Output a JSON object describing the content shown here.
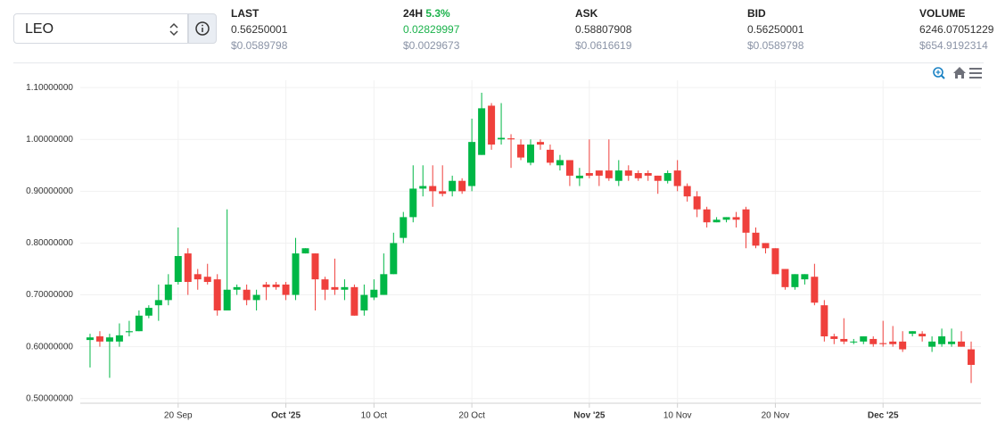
{
  "header": {
    "symbol": "LEO",
    "stats": [
      {
        "label": "LAST",
        "value": "0.56250001",
        "usd": "$0.0589798"
      },
      {
        "label": "24H",
        "change": "5.3%",
        "value": "0.02829997",
        "usd": "$0.0029673"
      },
      {
        "label": "ASK",
        "value": "0.58807908",
        "usd": "$0.0616619"
      },
      {
        "label": "BID",
        "value": "0.56250001",
        "usd": "$0.0589798"
      },
      {
        "label": "VOLUME",
        "value": "6246.07051229",
        "usd": "$654.9192314"
      }
    ]
  },
  "chart_data": {
    "type": "candlestick",
    "up_color": "#00b746",
    "down_color": "#ef403c",
    "grid": true,
    "xlim": [
      "2025-09-10",
      "2025-12-11"
    ],
    "xticks": [
      {
        "value": "2025-09-20",
        "label": "20 Sep"
      },
      {
        "value": "2025-10-01",
        "label": "Oct '25"
      },
      {
        "value": "2025-10-10",
        "label": "10 Oct"
      },
      {
        "value": "2025-10-20",
        "label": "20 Oct"
      },
      {
        "value": "2025-11-01",
        "label": "Nov '25"
      },
      {
        "value": "2025-11-10",
        "label": "10 Nov"
      },
      {
        "value": "2025-11-20",
        "label": "20 Nov"
      },
      {
        "value": "2025-12-01",
        "label": "Dec '25"
      }
    ],
    "ylim": [
      0.491,
      1.114
    ],
    "yticks": [
      {
        "value": 0.5,
        "label": "0.50000000"
      },
      {
        "value": 0.6,
        "label": "0.60000000"
      },
      {
        "value": 0.7,
        "label": "0.70000000"
      },
      {
        "value": 0.8,
        "label": "0.80000000"
      },
      {
        "value": 0.9,
        "label": "0.90000000"
      },
      {
        "value": 1.0,
        "label": "1.00000000"
      },
      {
        "value": 1.1,
        "label": "1.10000000"
      }
    ],
    "x": [
      "2025-09-11",
      "2025-09-12",
      "2025-09-13",
      "2025-09-14",
      "2025-09-15",
      "2025-09-16",
      "2025-09-17",
      "2025-09-18",
      "2025-09-19",
      "2025-09-20",
      "2025-09-21",
      "2025-09-22",
      "2025-09-23",
      "2025-09-24",
      "2025-09-25",
      "2025-09-26",
      "2025-09-27",
      "2025-09-28",
      "2025-09-29",
      "2025-09-30",
      "2025-10-01",
      "2025-10-02",
      "2025-10-03",
      "2025-10-04",
      "2025-10-05",
      "2025-10-06",
      "2025-10-07",
      "2025-10-08",
      "2025-10-09",
      "2025-10-10",
      "2025-10-11",
      "2025-10-12",
      "2025-10-13",
      "2025-10-14",
      "2025-10-15",
      "2025-10-16",
      "2025-10-17",
      "2025-10-18",
      "2025-10-19",
      "2025-10-20",
      "2025-10-21",
      "2025-10-22",
      "2025-10-23",
      "2025-10-24",
      "2025-10-25",
      "2025-10-26",
      "2025-10-27",
      "2025-10-28",
      "2025-10-29",
      "2025-10-30",
      "2025-10-31",
      "2025-11-01",
      "2025-11-02",
      "2025-11-03",
      "2025-11-04",
      "2025-11-05",
      "2025-11-06",
      "2025-11-07",
      "2025-11-08",
      "2025-11-09",
      "2025-11-10",
      "2025-11-11",
      "2025-11-12",
      "2025-11-13",
      "2025-11-14",
      "2025-11-15",
      "2025-11-16",
      "2025-11-17",
      "2025-11-18",
      "2025-11-19",
      "2025-11-20",
      "2025-11-21",
      "2025-11-22",
      "2025-11-23",
      "2025-11-24",
      "2025-11-25",
      "2025-11-26",
      "2025-11-27",
      "2025-11-28",
      "2025-11-29",
      "2025-11-30",
      "2025-12-01",
      "2025-12-02",
      "2025-12-03",
      "2025-12-04",
      "2025-12-05",
      "2025-12-06",
      "2025-12-07",
      "2025-12-08",
      "2025-12-09",
      "2025-12-10"
    ],
    "open": [
      0.613,
      0.62,
      0.61,
      0.61,
      0.628,
      0.63,
      0.66,
      0.68,
      0.69,
      0.725,
      0.78,
      0.74,
      0.735,
      0.73,
      0.67,
      0.71,
      0.71,
      0.69,
      0.72,
      0.72,
      0.72,
      0.7,
      0.78,
      0.78,
      0.73,
      0.715,
      0.71,
      0.715,
      0.67,
      0.695,
      0.7,
      0.74,
      0.81,
      0.85,
      0.905,
      0.91,
      0.9,
      0.9,
      0.92,
      0.91,
      0.97,
      1.065,
      1.0,
      1.002,
      0.99,
      0.955,
      0.995,
      0.98,
      0.95,
      0.96,
      0.925,
      0.935,
      0.94,
      0.94,
      0.92,
      0.94,
      0.935,
      0.935,
      0.93,
      0.92,
      0.94,
      0.91,
      0.89,
      0.865,
      0.84,
      0.845,
      0.85,
      0.865,
      0.82,
      0.8,
      0.79,
      0.75,
      0.715,
      0.73,
      0.735,
      0.68,
      0.62,
      0.615,
      0.61,
      0.61,
      0.615,
      0.607,
      0.61,
      0.61,
      0.625,
      0.625,
      0.6,
      0.605,
      0.605,
      0.61,
      0.595
    ],
    "high": [
      0.625,
      0.63,
      0.625,
      0.645,
      0.65,
      0.67,
      0.68,
      0.72,
      0.74,
      0.83,
      0.79,
      0.75,
      0.76,
      0.74,
      0.865,
      0.72,
      0.72,
      0.71,
      0.725,
      0.725,
      0.725,
      0.81,
      0.79,
      0.78,
      0.735,
      0.77,
      0.73,
      0.72,
      0.72,
      0.73,
      0.78,
      0.82,
      0.86,
      0.95,
      0.95,
      0.95,
      0.95,
      0.93,
      0.925,
      1.04,
      1.09,
      1.07,
      1.07,
      1.01,
      1.0,
      1.0,
      1.0,
      0.99,
      0.97,
      0.96,
      0.945,
      1.0,
      0.94,
      1.0,
      0.96,
      0.95,
      0.94,
      0.94,
      0.93,
      0.94,
      0.96,
      0.915,
      0.9,
      0.87,
      0.85,
      0.85,
      0.86,
      0.87,
      0.83,
      0.8,
      0.79,
      0.75,
      0.74,
      0.74,
      0.76,
      0.69,
      0.625,
      0.655,
      0.615,
      0.62,
      0.62,
      0.65,
      0.64,
      0.63,
      0.63,
      0.63,
      0.62,
      0.635,
      0.635,
      0.63,
      0.61
    ],
    "low": [
      0.56,
      0.6,
      0.54,
      0.6,
      0.62,
      0.63,
      0.655,
      0.65,
      0.68,
      0.72,
      0.7,
      0.71,
      0.72,
      0.66,
      0.67,
      0.7,
      0.68,
      0.67,
      0.69,
      0.71,
      0.69,
      0.69,
      0.78,
      0.67,
      0.69,
      0.7,
      0.69,
      0.66,
      0.66,
      0.69,
      0.7,
      0.74,
      0.8,
      0.84,
      0.89,
      0.87,
      0.89,
      0.89,
      0.895,
      0.9,
      0.97,
      0.98,
      0.99,
      0.945,
      0.96,
      0.95,
      0.98,
      0.95,
      0.94,
      0.91,
      0.91,
      0.925,
      0.91,
      0.92,
      0.91,
      0.92,
      0.92,
      0.92,
      0.895,
      0.915,
      0.9,
      0.88,
      0.85,
      0.83,
      0.84,
      0.84,
      0.83,
      0.79,
      0.79,
      0.78,
      0.74,
      0.71,
      0.71,
      0.72,
      0.68,
      0.61,
      0.605,
      0.605,
      0.605,
      0.605,
      0.6,
      0.6,
      0.6,
      0.59,
      0.62,
      0.61,
      0.59,
      0.6,
      0.6,
      0.6,
      0.53
    ],
    "close": [
      0.618,
      0.61,
      0.618,
      0.622,
      0.63,
      0.66,
      0.675,
      0.69,
      0.72,
      0.775,
      0.725,
      0.73,
      0.725,
      0.67,
      0.71,
      0.715,
      0.69,
      0.7,
      0.715,
      0.715,
      0.7,
      0.78,
      0.79,
      0.73,
      0.71,
      0.71,
      0.715,
      0.66,
      0.7,
      0.71,
      0.74,
      0.8,
      0.85,
      0.905,
      0.91,
      0.9,
      0.895,
      0.92,
      0.9,
      0.995,
      1.06,
      0.99,
      1.003,
      1.0,
      0.965,
      0.99,
      0.99,
      0.955,
      0.96,
      0.93,
      0.93,
      0.93,
      0.93,
      0.925,
      0.94,
      0.93,
      0.925,
      0.93,
      0.92,
      0.935,
      0.91,
      0.89,
      0.865,
      0.84,
      0.845,
      0.85,
      0.845,
      0.82,
      0.795,
      0.79,
      0.74,
      0.715,
      0.74,
      0.74,
      0.685,
      0.62,
      0.615,
      0.61,
      0.61,
      0.62,
      0.605,
      0.605,
      0.605,
      0.595,
      0.63,
      0.62,
      0.61,
      0.62,
      0.61,
      0.6,
      0.565
    ]
  }
}
